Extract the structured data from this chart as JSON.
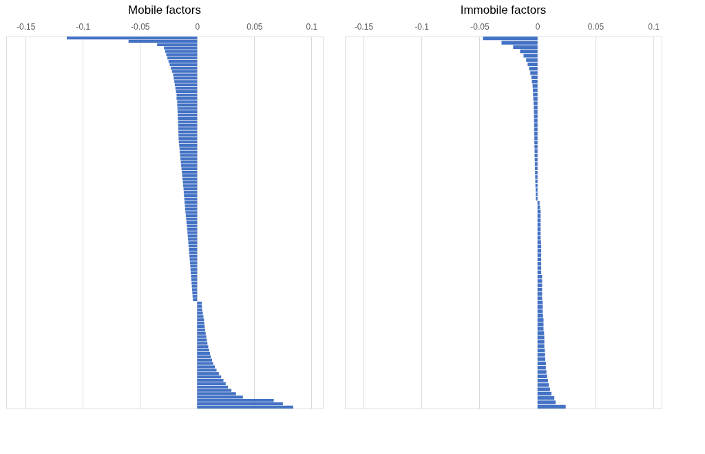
{
  "chart_data": [
    {
      "type": "bar",
      "orientation": "horizontal",
      "title": "Mobile factors",
      "color": "#4472c4",
      "grid": "x",
      "tick_labels": "x",
      "xlim": [
        -0.167,
        0.11
      ],
      "xticks": [
        -0.15,
        -0.1,
        -0.05,
        0,
        0.05,
        0.1
      ],
      "categories": [
        null,
        null,
        null,
        null,
        null,
        null,
        null,
        null,
        null,
        null,
        null,
        null,
        null,
        null,
        null,
        null,
        null,
        null,
        null,
        null,
        null,
        null,
        null,
        null,
        null,
        null,
        null,
        null,
        null,
        null,
        null,
        null,
        null,
        null,
        null,
        null,
        null,
        null,
        null,
        null,
        null,
        null,
        null,
        null,
        null,
        null,
        null,
        null,
        null,
        null,
        null,
        null,
        null,
        null,
        null,
        null,
        null,
        null,
        null,
        null,
        null,
        null,
        null,
        null,
        null,
        null,
        null,
        null,
        null,
        null,
        null,
        null,
        null,
        null,
        null,
        null,
        null,
        null,
        null,
        null,
        null,
        null,
        null,
        null,
        null,
        null,
        null,
        null,
        null,
        null,
        null,
        null,
        null,
        null,
        null,
        null,
        null,
        null,
        null,
        null,
        null,
        null,
        null,
        null,
        null,
        null,
        null,
        null,
        null,
        null,
        null
      ],
      "values": [
        -0.114,
        -0.06,
        -0.035,
        -0.029,
        -0.028,
        -0.027,
        -0.026,
        -0.025,
        -0.024,
        -0.023,
        -0.022,
        -0.021,
        -0.0205,
        -0.02,
        -0.0195,
        -0.019,
        -0.0185,
        -0.018,
        -0.018,
        -0.0175,
        -0.0174,
        -0.0172,
        -0.0171,
        -0.017,
        -0.0168,
        -0.0167,
        -0.0166,
        -0.0165,
        -0.0164,
        -0.0163,
        -0.0162,
        -0.016,
        -0.0157,
        -0.0154,
        -0.0152,
        -0.0149,
        -0.0146,
        -0.0143,
        -0.014,
        -0.0137,
        -0.0134,
        -0.0131,
        -0.0128,
        -0.0125,
        -0.0122,
        -0.0119,
        -0.0117,
        -0.0115,
        -0.0112,
        -0.011,
        -0.0107,
        -0.0105,
        -0.0102,
        -0.0099,
        -0.0096,
        -0.0093,
        -0.009,
        -0.0087,
        -0.0085,
        -0.0082,
        -0.008,
        -0.0077,
        -0.0075,
        -0.0072,
        -0.007,
        -0.0067,
        -0.0065,
        -0.0062,
        -0.006,
        -0.0058,
        -0.0056,
        -0.0053,
        -0.0051,
        -0.0049,
        -0.0046,
        -0.0044,
        -0.0042,
        -0.004,
        -0.0037,
        0.004,
        0.0042,
        0.0045,
        0.005,
        0.0055,
        0.006,
        0.0063,
        0.0066,
        0.007,
        0.0075,
        0.008,
        0.0085,
        0.009,
        0.0097,
        0.0105,
        0.0112,
        0.012,
        0.013,
        0.014,
        0.0155,
        0.017,
        0.019,
        0.021,
        0.023,
        0.025,
        0.027,
        0.03,
        0.034,
        0.04,
        0.067,
        0.075,
        0.084
      ]
    },
    {
      "type": "bar",
      "orientation": "horizontal",
      "title": "Immobile factors",
      "color": "#4472c4",
      "grid": "x",
      "tick_labels": "x",
      "xlim": [
        -0.166,
        0.107
      ],
      "xticks": [
        -0.15,
        -0.1,
        -0.05,
        0,
        0.05,
        0.1
      ],
      "categories": [
        null,
        null,
        null,
        null,
        null,
        null,
        null,
        null,
        null,
        null,
        null,
        null,
        null,
        null,
        null,
        null,
        null,
        null,
        null,
        null,
        null,
        null,
        null,
        null,
        null,
        null,
        null,
        null,
        null,
        null,
        null,
        null,
        null,
        null,
        null,
        null,
        null,
        null,
        null,
        null,
        null,
        null,
        null,
        null,
        null,
        null,
        null,
        null,
        null,
        null,
        null,
        null,
        null,
        null,
        null,
        null,
        null,
        null,
        null,
        null,
        null,
        null,
        null,
        null,
        null,
        null,
        null,
        null,
        null,
        null,
        null,
        null,
        null,
        null,
        null,
        null,
        null,
        null,
        null,
        null,
        null,
        null,
        null,
        null,
        null,
        null
      ],
      "values": [
        -0.047,
        -0.031,
        -0.021,
        -0.015,
        -0.012,
        -0.0098,
        -0.0085,
        -0.0072,
        -0.0062,
        -0.0053,
        -0.0048,
        -0.0042,
        -0.004,
        -0.0038,
        -0.0036,
        -0.0034,
        -0.0032,
        -0.0031,
        -0.003,
        -0.003,
        -0.0029,
        -0.0028,
        -0.0028,
        -0.0027,
        -0.0027,
        -0.0026,
        -0.0025,
        -0.0025,
        -0.0024,
        -0.0023,
        -0.0022,
        -0.0021,
        -0.002,
        -0.0019,
        -0.0018,
        -0.0016,
        -0.0015,
        -0.0014,
        0.0018,
        0.0022,
        0.0027,
        0.0027,
        0.0027,
        0.0027,
        0.0027,
        0.0027,
        0.0027,
        0.003,
        0.0032,
        0.0032,
        0.0032,
        0.0032,
        0.0032,
        0.0032,
        0.0032,
        0.004,
        0.004,
        0.004,
        0.004,
        0.004,
        0.004,
        0.0045,
        0.0045,
        0.0045,
        0.0048,
        0.0052,
        0.0052,
        0.0052,
        0.0057,
        0.0059,
        0.0059,
        0.0059,
        0.0063,
        0.0065,
        0.0067,
        0.0072,
        0.0072,
        0.0077,
        0.0083,
        0.009,
        0.0097,
        0.0108,
        0.012,
        0.0145,
        0.0156,
        0.0243
      ]
    }
  ]
}
